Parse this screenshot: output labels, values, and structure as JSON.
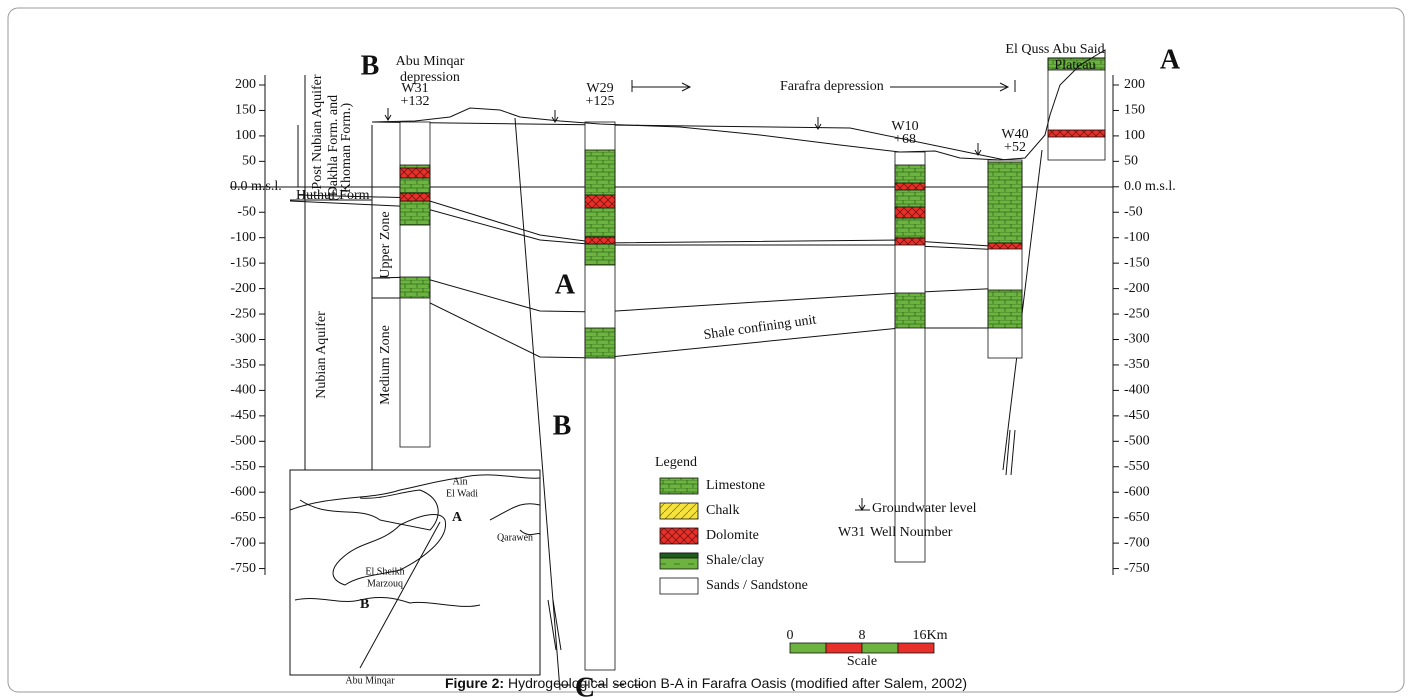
{
  "section": {
    "left_label": "B",
    "right_label": "A",
    "left_place": [
      "Abu Minqar",
      "depression"
    ],
    "right_place": [
      "El Quss Abu Said",
      "Plateau"
    ],
    "depression": "Farafra depression"
  },
  "wells": [
    {
      "name": "W31",
      "elevation": "+132"
    },
    {
      "name": "W29",
      "elevation": "+125"
    },
    {
      "name": "W10",
      "elevation": "+68"
    },
    {
      "name": "W40",
      "elevation": "+52"
    }
  ],
  "axis_labels": [
    "200",
    "150",
    "100",
    "50",
    "0.0 m.s.l.",
    "-50",
    "-100",
    "-150",
    "-200",
    "-250",
    "-300",
    "-350",
    "-400",
    "-450",
    "-500",
    "-550",
    "-600",
    "-650",
    "-700",
    "-750"
  ],
  "units": {
    "post_nubian": "Post Nubian Aquifer",
    "post_nubian_forms": [
      "(Dakhla Form. and",
      "Khoman Form.)"
    ],
    "huthuf": "Huthuf Form",
    "nubian": "Nubian Aquifer",
    "upper_zone": "Upper Zone",
    "medium_zone": "Medium Zone",
    "shale": "Shale confining unit"
  },
  "fault_blocks": [
    "A",
    "B",
    "C"
  ],
  "legend": {
    "title": "Legend",
    "items": [
      "Limestone",
      "Chalk",
      "Dolomite",
      "Shale/clay",
      "Sands / Sandstone"
    ],
    "groundwater": "Groundwater level",
    "well_example": "W31",
    "well_text": "Well Noumber"
  },
  "scale": {
    "ticks": [
      "0",
      "8",
      "16Km"
    ],
    "title": "Scale"
  },
  "map": {
    "labels": [
      "Ain",
      "El Wadi",
      "Qarawen",
      "El Sheikh",
      "Marzouq",
      "Abu Minqar",
      "A",
      "B"
    ]
  },
  "caption": {
    "label": "Figure 2:",
    "text": " Hydrogeological section B-A in Farafra Oasis (modified after Salem, 2002)"
  }
}
